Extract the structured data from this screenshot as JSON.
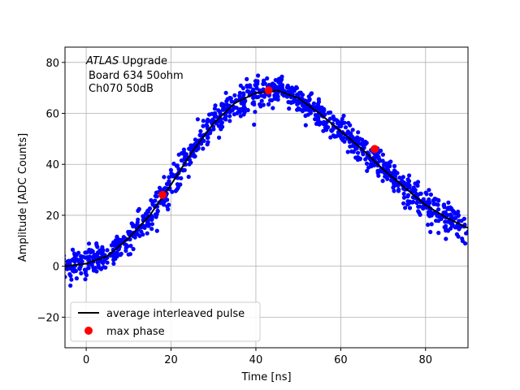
{
  "chart_data": {
    "type": "scatter",
    "xlabel": "Time [ns]",
    "ylabel": "Amplitude [ADC Counts]",
    "xlim": [
      -5,
      90
    ],
    "ylim": [
      -32,
      86
    ],
    "xticks": [
      0,
      20,
      40,
      60,
      80
    ],
    "yticks": [
      -20,
      0,
      20,
      40,
      60,
      80
    ],
    "grid": true,
    "annotation": {
      "line1_italic": "ATLAS",
      "line1_rest": " Upgrade",
      "line2": "Board 634 50ohm",
      "line3": "Ch070 50dB"
    },
    "legend": {
      "placement": "lower-left",
      "entries": [
        {
          "label": "average interleaved pulse",
          "color": "#000000",
          "marker": "line"
        },
        {
          "label": "max phase",
          "color": "#ff0000",
          "marker": "dot"
        }
      ]
    },
    "series": [
      {
        "name": "average interleaved pulse",
        "style": "line",
        "color": "#000000",
        "x": [
          -5,
          0,
          5,
          10,
          15,
          20,
          25,
          30,
          35,
          40,
          45,
          50,
          55,
          60,
          65,
          70,
          75,
          80,
          85,
          90
        ],
        "y": [
          0,
          1,
          4,
          11,
          20,
          32,
          45,
          56,
          64,
          68,
          69,
          66,
          60,
          53,
          46,
          38,
          31,
          24,
          19,
          15
        ]
      },
      {
        "name": "max phase",
        "style": "dot",
        "color": "#ff0000",
        "x": [
          18,
          43,
          68
        ],
        "y": [
          28,
          69,
          46
        ]
      }
    ],
    "scatter_style": {
      "color": "#0000ff",
      "count": 1100,
      "spread_ns": 0.9,
      "noise_adc": 3
    }
  }
}
